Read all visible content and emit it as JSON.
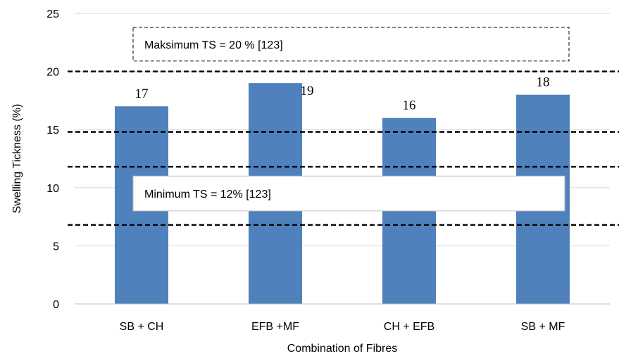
{
  "chart_data": {
    "type": "bar",
    "categories": [
      "SB + CH",
      "EFB +MF",
      "CH + EFB",
      "SB + MF"
    ],
    "values": [
      17,
      19,
      16,
      18
    ],
    "data_labels": [
      "17",
      "19",
      "16",
      "18"
    ],
    "xlabel": "Combination of Fibres",
    "ylabel": "Swelling Tickness (%)",
    "ylim": [
      0,
      25
    ],
    "yticks": [
      0,
      5,
      10,
      15,
      20,
      25
    ],
    "ytick_labels": [
      "0",
      "5",
      "10",
      "15",
      "20",
      "25"
    ],
    "grid": true,
    "bar_color": "#4f81bd",
    "reference_lines": [
      20,
      14.8,
      11.8,
      6.8
    ],
    "annotations": [
      {
        "text": "Maksimum TS = 20 % [123]",
        "y_top": 23.8,
        "y_bottom": 20.9
      },
      {
        "text": "Minimum TS = 12% [123]",
        "y_top": 11.0,
        "y_bottom": 8.0
      }
    ]
  }
}
